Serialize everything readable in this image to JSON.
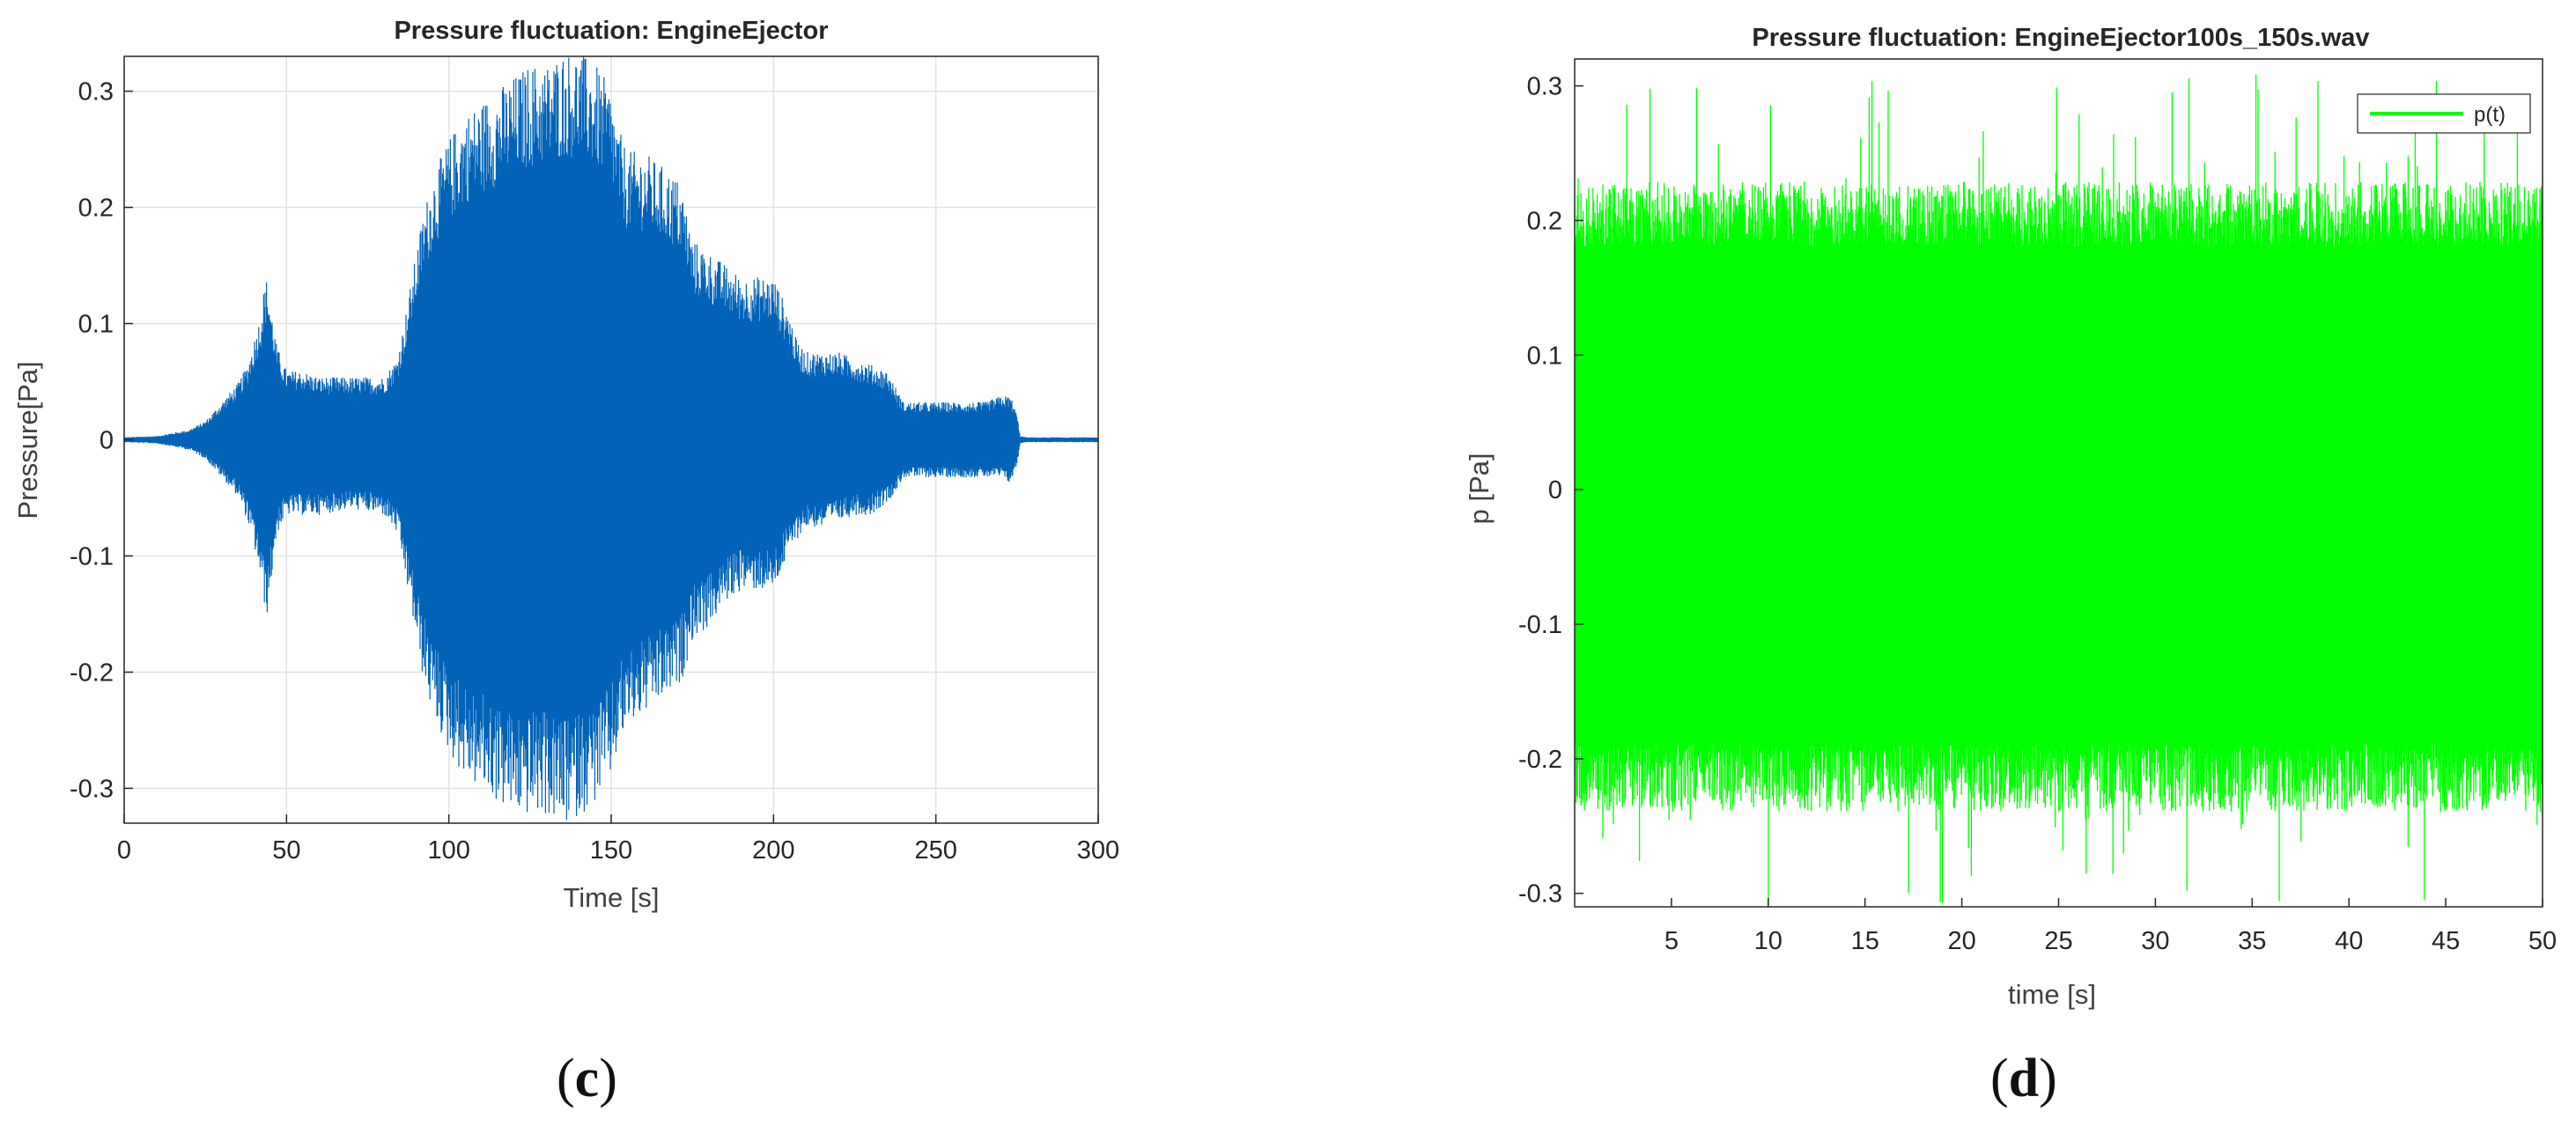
{
  "chart_data": [
    {
      "type": "line",
      "title": "Pressure fluctuation: EngineEjector",
      "xlabel": "Time [s]",
      "ylabel": "Pressure[Pa]",
      "xlim": [
        0,
        300
      ],
      "ylim": [
        -0.33,
        0.33
      ],
      "xticks": [
        0,
        50,
        100,
        150,
        200,
        250,
        300
      ],
      "xtick_labels": [
        "0",
        "50",
        "100",
        "150",
        "200",
        "250",
        "300"
      ],
      "yticks": [
        -0.3,
        -0.2,
        -0.1,
        0,
        0.1,
        0.2,
        0.3
      ],
      "ytick_labels": [
        "-0.3",
        "-0.2",
        "-0.1",
        "0",
        "0.1",
        "0.2",
        "0.3"
      ],
      "grid": true,
      "color": "#0063b8",
      "caption_letter": "c",
      "series": [
        {
          "envelope_t": [
            0,
            10,
            20,
            25,
            30,
            35,
            38,
            40,
            42,
            43,
            44,
            45,
            47,
            50,
            55,
            60,
            70,
            80,
            84,
            86,
            88,
            90,
            92,
            95,
            100,
            105,
            110,
            115,
            120,
            125,
            130,
            135,
            140,
            145,
            150,
            152,
            155,
            160,
            165,
            170,
            172,
            175,
            180,
            185,
            190,
            195,
            200,
            205,
            207,
            210,
            215,
            220,
            225,
            230,
            235,
            238,
            240,
            245,
            250,
            255,
            260,
            265,
            270,
            273,
            275,
            276,
            278,
            280,
            290,
            300
          ],
          "envelope_upper": [
            0.002,
            0.003,
            0.008,
            0.015,
            0.03,
            0.045,
            0.06,
            0.08,
            0.1,
            0.12,
            0.13,
            0.11,
            0.075,
            0.055,
            0.055,
            0.05,
            0.05,
            0.05,
            0.065,
            0.09,
            0.12,
            0.15,
            0.18,
            0.21,
            0.24,
            0.26,
            0.27,
            0.28,
            0.29,
            0.3,
            0.3,
            0.31,
            0.31,
            0.3,
            0.28,
            0.25,
            0.23,
            0.23,
            0.22,
            0.21,
            0.2,
            0.16,
            0.15,
            0.14,
            0.13,
            0.13,
            0.13,
            0.1,
            0.08,
            0.07,
            0.07,
            0.07,
            0.065,
            0.06,
            0.055,
            0.04,
            0.03,
            0.03,
            0.03,
            0.03,
            0.03,
            0.03,
            0.035,
            0.035,
            0.02,
            0.003,
            0.002,
            0.002,
            0.002,
            0.002
          ],
          "envelope_lower": [
            -0.002,
            -0.003,
            -0.008,
            -0.015,
            -0.03,
            -0.045,
            -0.065,
            -0.085,
            -0.11,
            -0.13,
            -0.14,
            -0.12,
            -0.075,
            -0.06,
            -0.06,
            -0.06,
            -0.055,
            -0.06,
            -0.075,
            -0.1,
            -0.13,
            -0.16,
            -0.19,
            -0.22,
            -0.25,
            -0.27,
            -0.28,
            -0.29,
            -0.3,
            -0.3,
            -0.3,
            -0.31,
            -0.3,
            -0.29,
            -0.27,
            -0.25,
            -0.23,
            -0.22,
            -0.21,
            -0.2,
            -0.19,
            -0.16,
            -0.15,
            -0.13,
            -0.12,
            -0.12,
            -0.12,
            -0.09,
            -0.08,
            -0.07,
            -0.07,
            -0.065,
            -0.06,
            -0.06,
            -0.05,
            -0.04,
            -0.03,
            -0.03,
            -0.03,
            -0.03,
            -0.03,
            -0.03,
            -0.03,
            -0.035,
            -0.02,
            -0.003,
            -0.002,
            -0.002,
            -0.002,
            -0.002
          ]
        }
      ]
    },
    {
      "type": "line",
      "title": "Pressure fluctuation: EngineEjector100s_150s.wav",
      "xlabel": "time [s]",
      "ylabel": "p [Pa]",
      "xlim": [
        0,
        50
      ],
      "ylim": [
        -0.31,
        0.32
      ],
      "xticks": [
        5,
        10,
        15,
        20,
        25,
        30,
        35,
        40,
        45,
        50
      ],
      "xtick_labels": [
        "5",
        "10",
        "15",
        "20",
        "25",
        "30",
        "35",
        "40",
        "45",
        "50"
      ],
      "yticks": [
        -0.3,
        -0.2,
        -0.1,
        0,
        0.1,
        0.2,
        0.3
      ],
      "ytick_labels": [
        "-0.3",
        "-0.2",
        "-0.1",
        "0",
        "0.1",
        "0.2",
        "0.3"
      ],
      "grid": false,
      "color": "#00ff00",
      "legend_position": "top-right",
      "caption_letter": "d",
      "series": [
        {
          "name": "p(t)",
          "envelope_upper_level": 0.22,
          "envelope_lower_level": -0.23,
          "peak_max": 0.31,
          "peak_min": -0.31
        }
      ]
    }
  ]
}
